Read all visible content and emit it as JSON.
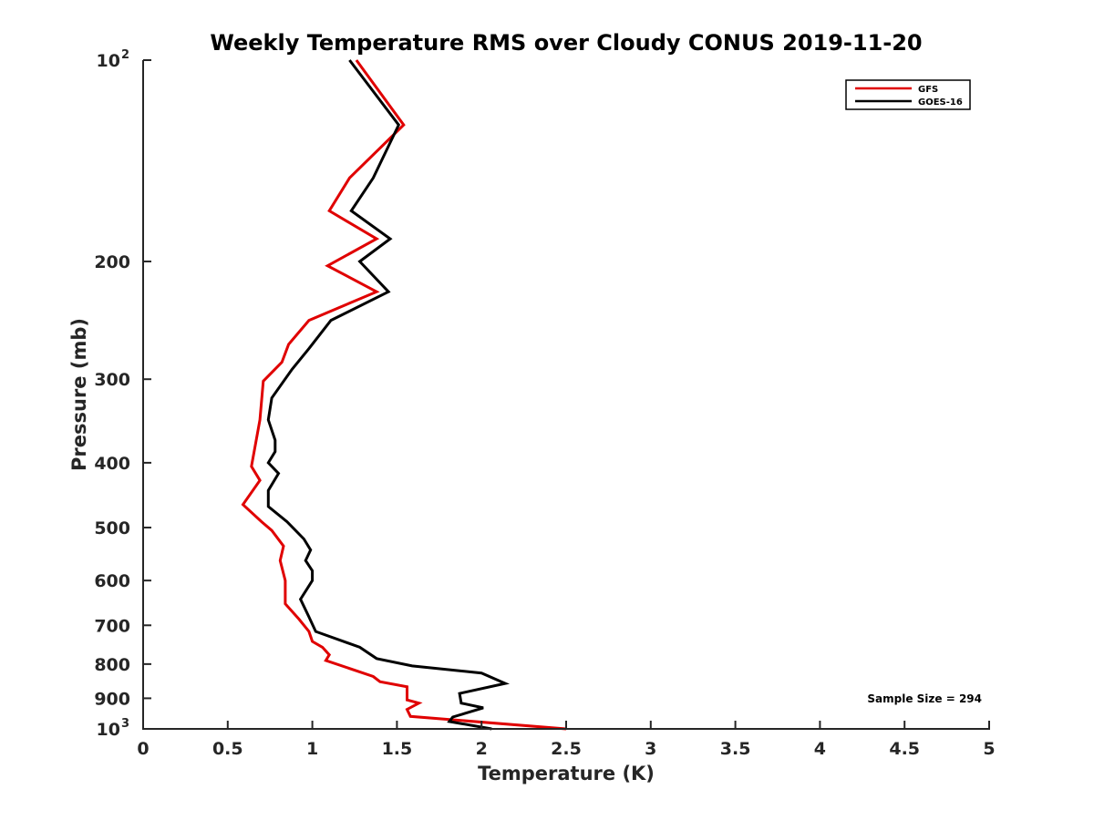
{
  "chart_data": {
    "type": "line",
    "title": "Weekly Temperature RMS over Cloudy CONUS 2019-11-20",
    "xlabel": "Temperature (K)",
    "ylabel": "Pressure (mb)",
    "xlim": [
      0,
      5
    ],
    "ylim": [
      100,
      1000
    ],
    "y_scale": "log",
    "y_reversed": true,
    "grid": false,
    "legend_position": "top-right",
    "x_ticks": [
      {
        "value": 0,
        "label": "0"
      },
      {
        "value": 0.5,
        "label": "0.5"
      },
      {
        "value": 1,
        "label": "1"
      },
      {
        "value": 1.5,
        "label": "1.5"
      },
      {
        "value": 2,
        "label": "2"
      },
      {
        "value": 2.5,
        "label": "2.5"
      },
      {
        "value": 3,
        "label": "3"
      },
      {
        "value": 3.5,
        "label": "3.5"
      },
      {
        "value": 4,
        "label": "4"
      },
      {
        "value": 4.5,
        "label": "4.5"
      },
      {
        "value": 5,
        "label": "5"
      }
    ],
    "y_ticks": [
      {
        "value": 100,
        "label": "10",
        "exponent": "2"
      },
      {
        "value": 200,
        "label": "200"
      },
      {
        "value": 300,
        "label": "300"
      },
      {
        "value": 400,
        "label": "400"
      },
      {
        "value": 500,
        "label": "500"
      },
      {
        "value": 600,
        "label": "600"
      },
      {
        "value": 700,
        "label": "700"
      },
      {
        "value": 800,
        "label": "800"
      },
      {
        "value": 900,
        "label": "900"
      },
      {
        "value": 1000,
        "label": "10",
        "exponent": "3"
      }
    ],
    "series": [
      {
        "name": "GFS",
        "color": "#e00000",
        "points": [
          {
            "x": 1.26,
            "p": 100
          },
          {
            "x": 1.54,
            "p": 125
          },
          {
            "x": 1.22,
            "p": 150
          },
          {
            "x": 1.1,
            "p": 168
          },
          {
            "x": 1.38,
            "p": 185
          },
          {
            "x": 1.09,
            "p": 203
          },
          {
            "x": 1.38,
            "p": 222
          },
          {
            "x": 0.98,
            "p": 245
          },
          {
            "x": 0.86,
            "p": 266
          },
          {
            "x": 0.82,
            "p": 283
          },
          {
            "x": 0.71,
            "p": 302
          },
          {
            "x": 0.69,
            "p": 345
          },
          {
            "x": 0.66,
            "p": 380
          },
          {
            "x": 0.64,
            "p": 405
          },
          {
            "x": 0.69,
            "p": 425
          },
          {
            "x": 0.59,
            "p": 462
          },
          {
            "x": 0.7,
            "p": 490
          },
          {
            "x": 0.76,
            "p": 505
          },
          {
            "x": 0.83,
            "p": 533
          },
          {
            "x": 0.81,
            "p": 560
          },
          {
            "x": 0.84,
            "p": 600
          },
          {
            "x": 0.84,
            "p": 650
          },
          {
            "x": 0.92,
            "p": 685
          },
          {
            "x": 0.98,
            "p": 715
          },
          {
            "x": 1.0,
            "p": 740
          },
          {
            "x": 1.06,
            "p": 755
          },
          {
            "x": 1.1,
            "p": 775
          },
          {
            "x": 1.08,
            "p": 790
          },
          {
            "x": 1.36,
            "p": 835
          },
          {
            "x": 1.4,
            "p": 850
          },
          {
            "x": 1.56,
            "p": 865
          },
          {
            "x": 1.56,
            "p": 905
          },
          {
            "x": 1.63,
            "p": 915
          },
          {
            "x": 1.56,
            "p": 935
          },
          {
            "x": 1.58,
            "p": 958
          },
          {
            "x": 2.5,
            "p": 1000
          }
        ]
      },
      {
        "name": "GOES-16",
        "color": "#000000",
        "points": [
          {
            "x": 1.22,
            "p": 100
          },
          {
            "x": 1.51,
            "p": 125
          },
          {
            "x": 1.36,
            "p": 150
          },
          {
            "x": 1.23,
            "p": 168
          },
          {
            "x": 1.46,
            "p": 185
          },
          {
            "x": 1.28,
            "p": 200
          },
          {
            "x": 1.45,
            "p": 222
          },
          {
            "x": 1.11,
            "p": 245
          },
          {
            "x": 0.98,
            "p": 270
          },
          {
            "x": 0.88,
            "p": 290
          },
          {
            "x": 0.76,
            "p": 320
          },
          {
            "x": 0.74,
            "p": 345
          },
          {
            "x": 0.78,
            "p": 370
          },
          {
            "x": 0.78,
            "p": 385
          },
          {
            "x": 0.74,
            "p": 400
          },
          {
            "x": 0.8,
            "p": 415
          },
          {
            "x": 0.74,
            "p": 440
          },
          {
            "x": 0.74,
            "p": 465
          },
          {
            "x": 0.85,
            "p": 490
          },
          {
            "x": 0.95,
            "p": 520
          },
          {
            "x": 0.99,
            "p": 540
          },
          {
            "x": 0.96,
            "p": 560
          },
          {
            "x": 1.0,
            "p": 580
          },
          {
            "x": 1.0,
            "p": 600
          },
          {
            "x": 0.93,
            "p": 640
          },
          {
            "x": 0.98,
            "p": 680
          },
          {
            "x": 1.02,
            "p": 715
          },
          {
            "x": 1.28,
            "p": 755
          },
          {
            "x": 1.38,
            "p": 785
          },
          {
            "x": 1.59,
            "p": 805
          },
          {
            "x": 2.0,
            "p": 825
          },
          {
            "x": 2.14,
            "p": 855
          },
          {
            "x": 1.87,
            "p": 885
          },
          {
            "x": 1.88,
            "p": 915
          },
          {
            "x": 2.01,
            "p": 930
          },
          {
            "x": 1.83,
            "p": 960
          },
          {
            "x": 1.81,
            "p": 975
          },
          {
            "x": 2.06,
            "p": 1000
          }
        ]
      }
    ],
    "annotations": [
      {
        "text": "Sample Size = 294",
        "position": "bottom-right"
      }
    ]
  }
}
